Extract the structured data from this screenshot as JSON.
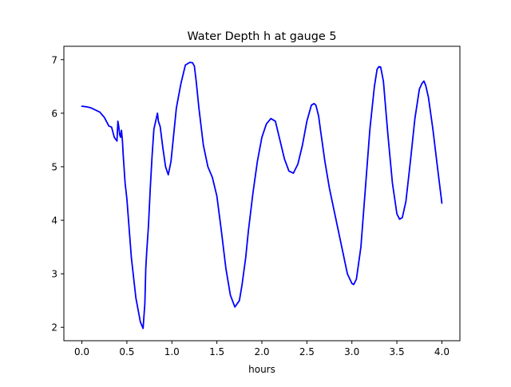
{
  "chart_data": {
    "type": "line",
    "title": "Water Depth h at gauge 5",
    "xlabel": "hours",
    "ylabel": "",
    "xlim": [
      -0.2,
      4.2
    ],
    "ylim": [
      1.75,
      7.25
    ],
    "xticks": [
      0.0,
      0.5,
      1.0,
      1.5,
      2.0,
      2.5,
      3.0,
      3.5,
      4.0
    ],
    "xtick_labels": [
      "0.0",
      "0.5",
      "1.0",
      "1.5",
      "2.0",
      "2.5",
      "3.0",
      "3.5",
      "4.0"
    ],
    "yticks": [
      2,
      3,
      4,
      5,
      6,
      7
    ],
    "ytick_labels": [
      "2",
      "3",
      "4",
      "5",
      "6",
      "7"
    ],
    "grid": false,
    "legend": false,
    "series": [
      {
        "color": "#0000ff",
        "x": [
          0.0,
          0.05,
          0.1,
          0.15,
          0.2,
          0.25,
          0.3,
          0.33,
          0.36,
          0.39,
          0.4,
          0.41,
          0.42,
          0.43,
          0.44,
          0.45,
          0.46,
          0.47,
          0.48,
          0.5,
          0.55,
          0.6,
          0.65,
          0.68,
          0.7,
          0.71,
          0.72,
          0.74,
          0.76,
          0.78,
          0.8,
          0.82,
          0.84,
          0.85,
          0.87,
          0.9,
          0.93,
          0.96,
          0.99,
          1.02,
          1.05,
          1.1,
          1.15,
          1.2,
          1.23,
          1.25,
          1.27,
          1.3,
          1.35,
          1.4,
          1.45,
          1.5,
          1.55,
          1.6,
          1.65,
          1.7,
          1.75,
          1.78,
          1.82,
          1.85,
          1.9,
          1.95,
          2.0,
          2.05,
          2.1,
          2.15,
          2.2,
          2.25,
          2.3,
          2.35,
          2.4,
          2.45,
          2.5,
          2.55,
          2.58,
          2.6,
          2.63,
          2.65,
          2.7,
          2.75,
          2.8,
          2.85,
          2.9,
          2.95,
          3.0,
          3.02,
          3.05,
          3.1,
          3.15,
          3.2,
          3.25,
          3.28,
          3.3,
          3.32,
          3.35,
          3.4,
          3.45,
          3.5,
          3.53,
          3.56,
          3.6,
          3.65,
          3.7,
          3.75,
          3.78,
          3.8,
          3.82,
          3.85,
          3.9,
          3.95,
          4.0
        ],
        "y": [
          6.13,
          6.12,
          6.1,
          6.06,
          6.02,
          5.92,
          5.76,
          5.74,
          5.55,
          5.48,
          5.85,
          5.75,
          5.6,
          5.55,
          5.68,
          5.5,
          5.2,
          4.95,
          4.7,
          4.4,
          3.3,
          2.55,
          2.1,
          1.98,
          2.45,
          3.1,
          3.4,
          3.9,
          4.6,
          5.2,
          5.7,
          5.85,
          6.0,
          5.85,
          5.75,
          5.35,
          5.0,
          4.85,
          5.1,
          5.6,
          6.1,
          6.55,
          6.9,
          6.95,
          6.94,
          6.88,
          6.6,
          6.1,
          5.4,
          5.0,
          4.8,
          4.45,
          3.8,
          3.1,
          2.6,
          2.38,
          2.5,
          2.8,
          3.3,
          3.8,
          4.5,
          5.1,
          5.55,
          5.8,
          5.9,
          5.85,
          5.5,
          5.15,
          4.92,
          4.88,
          5.05,
          5.4,
          5.85,
          6.15,
          6.18,
          6.15,
          5.95,
          5.7,
          5.1,
          4.6,
          4.2,
          3.8,
          3.4,
          3.0,
          2.82,
          2.8,
          2.9,
          3.5,
          4.6,
          5.7,
          6.5,
          6.82,
          6.87,
          6.86,
          6.6,
          5.6,
          4.7,
          4.12,
          4.02,
          4.05,
          4.35,
          5.1,
          5.9,
          6.45,
          6.56,
          6.6,
          6.52,
          6.3,
          5.7,
          5.0,
          4.32
        ]
      }
    ]
  }
}
